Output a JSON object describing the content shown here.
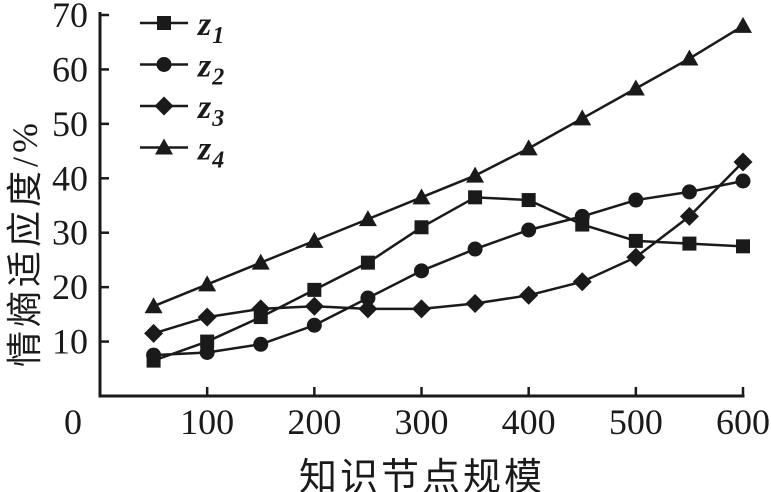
{
  "figure": {
    "background": "#ffffff",
    "ink": "#1a1a1a"
  },
  "chart_data": {
    "type": "line",
    "title": "",
    "xlabel": "知识节点规模",
    "ylabel": "情熵适应度/%",
    "xlim": [
      0,
      600
    ],
    "ylim": [
      0,
      70
    ],
    "xticks": [
      0,
      100,
      200,
      300,
      400,
      500,
      600
    ],
    "yticks": [
      10,
      20,
      30,
      40,
      50,
      60,
      70
    ],
    "grid": false,
    "legend_position": "top-left",
    "x": [
      50,
      100,
      150,
      200,
      250,
      300,
      350,
      400,
      450,
      500,
      550,
      600
    ],
    "series": [
      {
        "name": "z1",
        "label_base": "z",
        "label_sub": "1",
        "marker": "square",
        "values": [
          6.5,
          10,
          14.5,
          19.5,
          24.5,
          31,
          36.5,
          36,
          31.5,
          28.5,
          28,
          27.5
        ]
      },
      {
        "name": "z2",
        "label_base": "z",
        "label_sub": "2",
        "marker": "circle",
        "values": [
          7.5,
          8,
          9.5,
          13,
          18,
          23,
          27,
          30.5,
          33,
          36,
          37.5,
          39.5
        ]
      },
      {
        "name": "z3",
        "label_base": "z",
        "label_sub": "3",
        "marker": "diamond",
        "values": [
          11.5,
          14.5,
          16,
          16.5,
          16,
          16,
          17,
          18.5,
          21,
          25.5,
          33,
          43
        ]
      },
      {
        "name": "z4",
        "label_base": "z",
        "label_sub": "4",
        "marker": "triangle",
        "values": [
          16.5,
          20.5,
          24.5,
          28.5,
          32.5,
          36.5,
          40.5,
          45.5,
          51,
          56.5,
          62,
          68
        ]
      }
    ]
  }
}
